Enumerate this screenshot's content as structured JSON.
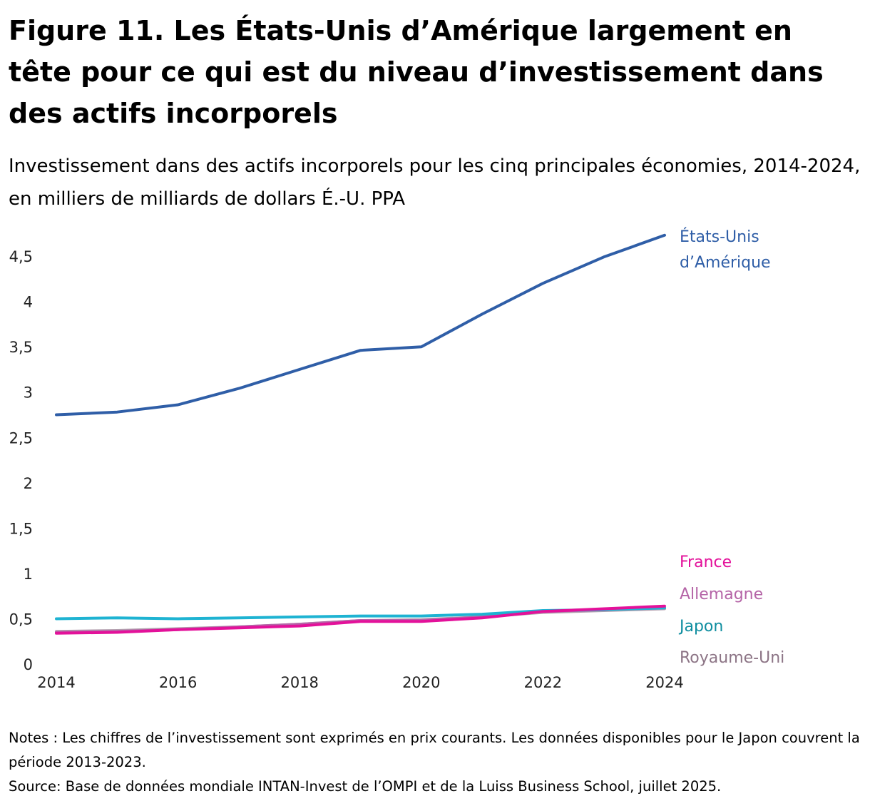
{
  "title": "Figure 11. Les États-Unis d’Amérique largement en tête pour ce qui est du niveau d’investissement dans des actifs incorporels",
  "subtitle": "Investissement dans des actifs incorporels pour les cinq principales économies, 2014-2024, en milliers de milliards de dollars É.-U. PPA",
  "notes": "Notes : Les chiffres de l’investissement sont exprimés en prix courants. Les données disponibles pour le Japon couvrent la période 2013-2023.",
  "source": "Source: Base de données mondiale INTAN-Invest de l’OMPI et de la Luiss Business School, juillet 2025.",
  "chart_data": {
    "type": "line",
    "title": "",
    "xlabel": "",
    "ylabel": "",
    "x": [
      2014,
      2015,
      2016,
      2017,
      2018,
      2019,
      2020,
      2021,
      2022,
      2023,
      2024
    ],
    "xlim": [
      2014,
      2024
    ],
    "ylim": [
      0,
      4.75
    ],
    "x_ticks": [
      {
        "value": 2014,
        "label": "2014"
      },
      {
        "value": 2016,
        "label": "2016"
      },
      {
        "value": 2018,
        "label": "2018"
      },
      {
        "value": 2020,
        "label": "2020"
      },
      {
        "value": 2022,
        "label": "2022"
      },
      {
        "value": 2024,
        "label": "2024"
      }
    ],
    "y_ticks": [
      {
        "value": 0,
        "label": "0"
      },
      {
        "value": 0.5,
        "label": "0,5"
      },
      {
        "value": 1,
        "label": "1"
      },
      {
        "value": 1.5,
        "label": "1,5"
      },
      {
        "value": 2,
        "label": "2"
      },
      {
        "value": 2.5,
        "label": "2,5"
      },
      {
        "value": 3,
        "label": "3"
      },
      {
        "value": 3.5,
        "label": "3,5"
      },
      {
        "value": 4,
        "label": "4"
      },
      {
        "value": 4.5,
        "label": "4,5"
      }
    ],
    "grid": false,
    "legend": "direct labels at line ends (right)",
    "series": [
      {
        "key": "royaume-uni",
        "name": "Royaume-Uni",
        "color": "#b3a0ae",
        "label_color": "#8c7485",
        "values": [
          0.36,
          0.37,
          0.39,
          0.41,
          0.44,
          0.48,
          0.49,
          0.52,
          0.57,
          0.59,
          0.61
        ]
      },
      {
        "key": "allemagne",
        "name": "Allemagne",
        "color": "#b565a7",
        "label_color": "#b565a7",
        "values": [
          0.35,
          0.36,
          0.38,
          0.41,
          0.44,
          0.48,
          0.48,
          0.52,
          0.58,
          0.6,
          0.62
        ]
      },
      {
        "key": "japon",
        "name": "Japon",
        "color": "#1eb3d2",
        "label_color": "#0f8ea0",
        "values": [
          0.5,
          0.51,
          0.5,
          0.51,
          0.52,
          0.53,
          0.53,
          0.55,
          0.59,
          0.6,
          0.62
        ]
      },
      {
        "key": "france",
        "name": "France",
        "color": "#e3119a",
        "label_color": "#e3119a",
        "values": [
          0.34,
          0.35,
          0.38,
          0.4,
          0.42,
          0.47,
          0.47,
          0.51,
          0.58,
          0.61,
          0.64
        ]
      },
      {
        "key": "etats-unis",
        "name": "États-Unis d’Amérique",
        "label_lines": [
          "États-Unis",
          "d’Amérique"
        ],
        "color": "#2f5ea7",
        "label_color": "#2f5ea7",
        "values": [
          2.75,
          2.78,
          2.86,
          3.04,
          3.25,
          3.46,
          3.5,
          3.86,
          4.2,
          4.49,
          4.73
        ]
      }
    ]
  }
}
